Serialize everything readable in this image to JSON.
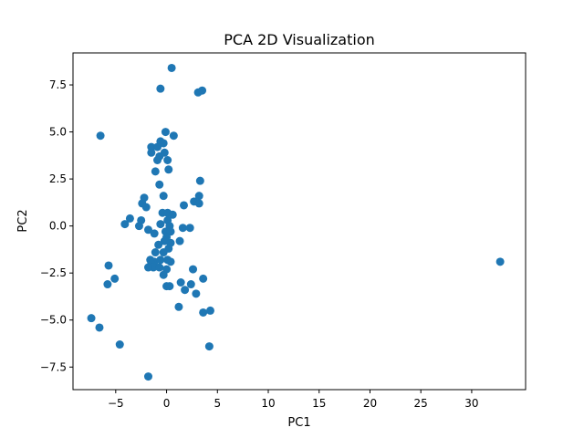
{
  "chart_data": {
    "type": "scatter",
    "title": "PCA 2D Visualization",
    "xlabel": "PC1",
    "ylabel": "PC2",
    "xlim": [
      -9.2,
      35.3
    ],
    "ylim": [
      -8.7,
      9.2
    ],
    "xticks": [
      -5,
      0,
      5,
      10,
      15,
      20,
      25,
      30
    ],
    "yticks": [
      -7.5,
      -5.0,
      -2.5,
      0.0,
      2.5,
      5.0,
      7.5
    ],
    "xtick_labels": [
      "−5",
      "0",
      "5",
      "10",
      "15",
      "20",
      "25",
      "30"
    ],
    "ytick_labels": [
      "−7.5",
      "−5.0",
      "−2.5",
      "0.0",
      "2.5",
      "5.0",
      "7.5"
    ],
    "grid": false,
    "marker_color": "#1f77b4",
    "points": [
      [
        0.5,
        8.4
      ],
      [
        -0.6,
        7.3
      ],
      [
        3.1,
        7.1
      ],
      [
        3.5,
        7.2
      ],
      [
        -6.5,
        4.8
      ],
      [
        -0.1,
        5.0
      ],
      [
        0.7,
        4.8
      ],
      [
        -1.5,
        4.2
      ],
      [
        -0.9,
        4.2
      ],
      [
        -0.6,
        4.5
      ],
      [
        -0.3,
        4.4
      ],
      [
        -1.5,
        3.9
      ],
      [
        -0.7,
        3.7
      ],
      [
        -0.2,
        3.9
      ],
      [
        -0.9,
        3.5
      ],
      [
        0.1,
        3.5
      ],
      [
        -1.1,
        2.9
      ],
      [
        0.2,
        3.0
      ],
      [
        3.3,
        2.4
      ],
      [
        -0.7,
        2.2
      ],
      [
        -0.3,
        1.6
      ],
      [
        3.2,
        1.6
      ],
      [
        -2.2,
        1.5
      ],
      [
        1.7,
        1.1
      ],
      [
        2.7,
        1.3
      ],
      [
        3.2,
        1.2
      ],
      [
        -2.4,
        1.2
      ],
      [
        -2.0,
        1.0
      ],
      [
        -0.4,
        0.7
      ],
      [
        0.1,
        0.7
      ],
      [
        0.6,
        0.6
      ],
      [
        -2.5,
        0.3
      ],
      [
        -3.6,
        0.4
      ],
      [
        -4.1,
        0.1
      ],
      [
        -2.7,
        0.0
      ],
      [
        -0.6,
        0.1
      ],
      [
        0.1,
        0.3
      ],
      [
        0.3,
        0.0
      ],
      [
        1.6,
        -0.1
      ],
      [
        2.3,
        -0.1
      ],
      [
        -1.8,
        -0.2
      ],
      [
        -1.2,
        -0.4
      ],
      [
        -0.1,
        -0.3
      ],
      [
        0.4,
        -0.3
      ],
      [
        0.0,
        -0.6
      ],
      [
        -0.2,
        -0.8
      ],
      [
        -0.8,
        -1.0
      ],
      [
        0.4,
        -0.9
      ],
      [
        1.3,
        -0.8
      ],
      [
        0.2,
        -1.2
      ],
      [
        -1.1,
        -1.4
      ],
      [
        -0.3,
        -1.4
      ],
      [
        -1.6,
        -1.8
      ],
      [
        -1.2,
        -1.9
      ],
      [
        -0.6,
        -1.8
      ],
      [
        -1.5,
        -2.0
      ],
      [
        0.1,
        -1.8
      ],
      [
        0.4,
        -1.9
      ],
      [
        -1.3,
        -2.2
      ],
      [
        -1.8,
        -2.2
      ],
      [
        -0.7,
        -2.2
      ],
      [
        0.0,
        -2.3
      ],
      [
        -0.3,
        -2.6
      ],
      [
        2.6,
        -2.3
      ],
      [
        3.6,
        -2.8
      ],
      [
        1.4,
        -3.0
      ],
      [
        2.4,
        -3.1
      ],
      [
        0.0,
        -3.2
      ],
      [
        0.3,
        -3.2
      ],
      [
        1.8,
        -3.4
      ],
      [
        2.9,
        -3.6
      ],
      [
        1.2,
        -4.3
      ],
      [
        3.6,
        -4.6
      ],
      [
        4.3,
        -4.5
      ],
      [
        -5.7,
        -2.1
      ],
      [
        -5.1,
        -2.8
      ],
      [
        -5.8,
        -3.1
      ],
      [
        -7.4,
        -4.9
      ],
      [
        -6.6,
        -5.4
      ],
      [
        -4.6,
        -6.3
      ],
      [
        4.2,
        -6.4
      ],
      [
        -1.8,
        -8.0
      ],
      [
        32.8,
        -1.9
      ]
    ]
  }
}
